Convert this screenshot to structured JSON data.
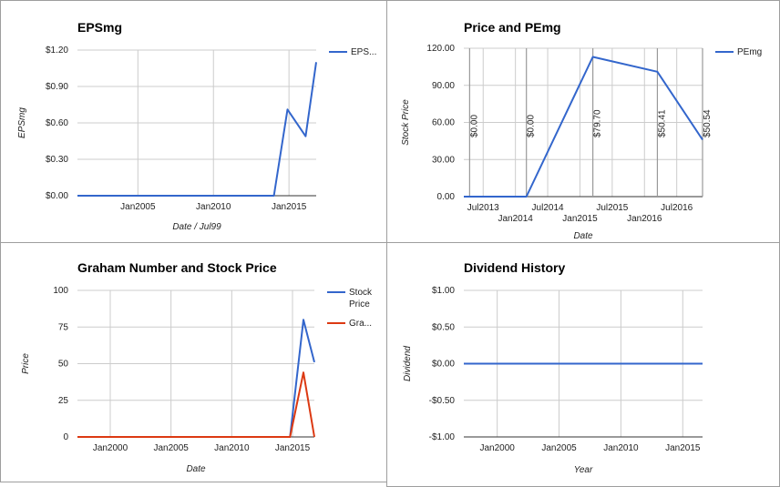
{
  "chart_data": [
    {
      "id": "eps",
      "type": "line",
      "title": "EPSmg",
      "xlabel": "Date / Jul99",
      "ylabel": "EPSmg",
      "xlim": [
        2001.0,
        2016.8
      ],
      "ylim": [
        0,
        1.2
      ],
      "xticks": [
        {
          "value": 2005,
          "label": "Jan2005",
          "row": 0
        },
        {
          "value": 2010,
          "label": "Jan2010",
          "row": 0
        },
        {
          "value": 2015,
          "label": "Jan2015",
          "row": 0
        }
      ],
      "yticks": [
        {
          "value": 0,
          "label": "$0.00"
        },
        {
          "value": 0.3,
          "label": "$0.30"
        },
        {
          "value": 0.6,
          "label": "$0.60"
        },
        {
          "value": 0.9,
          "label": "$0.90"
        },
        {
          "value": 1.2,
          "label": "$1.20"
        }
      ],
      "series": [
        {
          "name": "EPS...",
          "color": "#3366cc",
          "points": [
            [
              2001.0,
              0
            ],
            [
              2014.0,
              0
            ],
            [
              2014.9,
              0.71
            ],
            [
              2016.1,
              0.49
            ],
            [
              2016.8,
              1.1
            ]
          ]
        }
      ],
      "annotations": []
    },
    {
      "id": "pe",
      "type": "line",
      "title": "Price and PEmg",
      "xlabel": "Date",
      "ylabel": "Stock Price",
      "xlim": [
        2013.2,
        2016.9
      ],
      "ylim": [
        0,
        120
      ],
      "xticks": [
        {
          "value": 2013.5,
          "label": "Jul2013",
          "row": 0
        },
        {
          "value": 2014.0,
          "label": "Jan2014",
          "row": 1
        },
        {
          "value": 2014.5,
          "label": "Jul2014",
          "row": 0
        },
        {
          "value": 2015.0,
          "label": "Jan2015",
          "row": 1
        },
        {
          "value": 2015.5,
          "label": "Jul2015",
          "row": 0
        },
        {
          "value": 2016.0,
          "label": "Jan2016",
          "row": 1
        },
        {
          "value": 2016.5,
          "label": "Jul2016",
          "row": 0
        }
      ],
      "yticks": [
        {
          "value": 0,
          "label": "0.00"
        },
        {
          "value": 30,
          "label": "30.00"
        },
        {
          "value": 60,
          "label": "60.00"
        },
        {
          "value": 90,
          "label": "90.00"
        },
        {
          "value": 120,
          "label": "120.00"
        }
      ],
      "series": [
        {
          "name": "PEmg",
          "color": "#3366cc",
          "points": [
            [
              2013.2,
              0
            ],
            [
              2014.17,
              0
            ],
            [
              2015.2,
              113
            ],
            [
              2016.2,
              101
            ],
            [
              2016.9,
              46
            ]
          ]
        }
      ],
      "annotations": [
        {
          "x": 2013.29,
          "label": "$0.00"
        },
        {
          "x": 2014.17,
          "label": "$0.00"
        },
        {
          "x": 2015.2,
          "label": "$79.70"
        },
        {
          "x": 2016.2,
          "label": "$50.41"
        },
        {
          "x": 2016.9,
          "label": "$50.54"
        }
      ]
    },
    {
      "id": "graham",
      "type": "line",
      "title": "Graham Number and Stock Price",
      "xlabel": "Date",
      "ylabel": "Price",
      "xlim": [
        1997.3,
        2016.8
      ],
      "ylim": [
        0,
        100
      ],
      "xticks": [
        {
          "value": 2000,
          "label": "Jan2000",
          "row": 0
        },
        {
          "value": 2005,
          "label": "Jan2005",
          "row": 0
        },
        {
          "value": 2010,
          "label": "Jan2010",
          "row": 0
        },
        {
          "value": 2015,
          "label": "Jan2015",
          "row": 0
        }
      ],
      "yticks": [
        {
          "value": 0,
          "label": "0"
        },
        {
          "value": 25,
          "label": "25"
        },
        {
          "value": 50,
          "label": "50"
        },
        {
          "value": 75,
          "label": "75"
        },
        {
          "value": 100,
          "label": "100"
        }
      ],
      "series": [
        {
          "name": "Stock Price",
          "color": "#3366cc",
          "points": [
            [
              1997.3,
              0
            ],
            [
              2014.8,
              0
            ],
            [
              2015.9,
              80
            ],
            [
              2016.8,
              51
            ]
          ]
        },
        {
          "name": "Gra...",
          "color": "#dc3912",
          "points": [
            [
              1997.3,
              0
            ],
            [
              2014.8,
              0
            ],
            [
              2015.9,
              44
            ],
            [
              2016.8,
              0
            ]
          ]
        }
      ],
      "annotations": []
    },
    {
      "id": "dividend",
      "type": "line",
      "title": "Dividend History",
      "xlabel": "Year",
      "ylabel": "Dividend",
      "xlim": [
        1997.3,
        2016.6
      ],
      "ylim": [
        -1,
        1
      ],
      "xticks": [
        {
          "value": 2000,
          "label": "Jan2000",
          "row": 0
        },
        {
          "value": 2005,
          "label": "Jan2005",
          "row": 0
        },
        {
          "value": 2010,
          "label": "Jan2010",
          "row": 0
        },
        {
          "value": 2015,
          "label": "Jan2015",
          "row": 0
        }
      ],
      "yticks": [
        {
          "value": -1,
          "label": "-$1.00"
        },
        {
          "value": -0.5,
          "label": "-$0.50"
        },
        {
          "value": 0,
          "label": "$0.00"
        },
        {
          "value": 0.5,
          "label": "$0.50"
        },
        {
          "value": 1,
          "label": "$1.00"
        }
      ],
      "series": [
        {
          "name": "",
          "color": "#3366cc",
          "points": [
            [
              1997.3,
              0
            ],
            [
              2016.6,
              0
            ]
          ]
        }
      ],
      "annotations": []
    }
  ]
}
